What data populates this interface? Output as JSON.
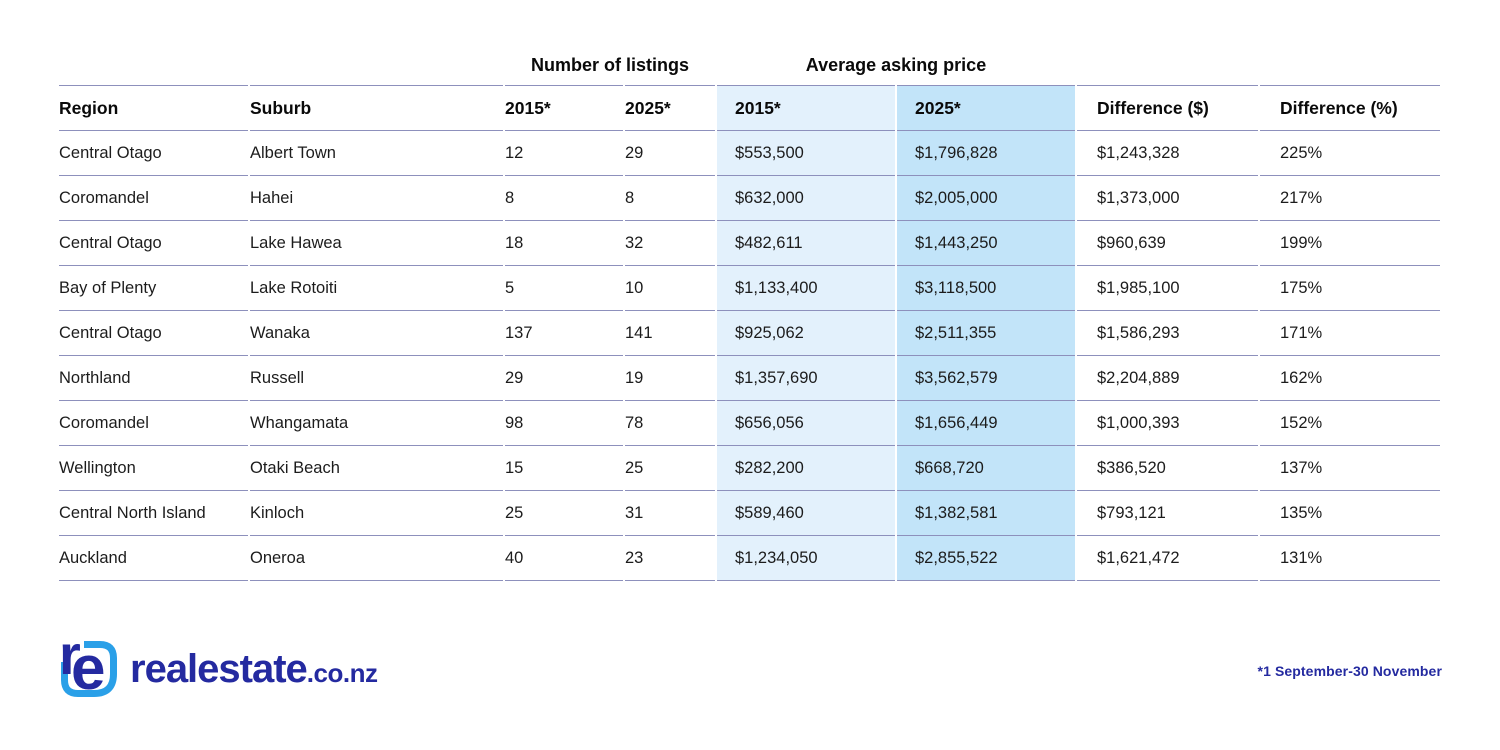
{
  "chart_data": {
    "type": "table",
    "group_headers": [
      {
        "label": "Number of listings",
        "spans": [
          "2015*",
          "2025*"
        ]
      },
      {
        "label": "Average asking price",
        "spans": [
          "2015*",
          "2025*"
        ]
      }
    ],
    "columns": [
      "Region",
      "Suburb",
      "2015*",
      "2025*",
      "2015*",
      "2025*",
      "Difference ($)",
      "Difference (%)"
    ],
    "rows": [
      [
        "Central Otago",
        "Albert Town",
        "12",
        "29",
        "$553,500",
        "$1,796,828",
        "$1,243,328",
        "225%"
      ],
      [
        "Coromandel",
        "Hahei",
        "8",
        "8",
        "$632,000",
        "$2,005,000",
        "$1,373,000",
        "217%"
      ],
      [
        "Central Otago",
        "Lake Hawea",
        "18",
        "32",
        "$482,611",
        "$1,443,250",
        "$960,639",
        "199%"
      ],
      [
        "Bay of Plenty",
        "Lake Rotoiti",
        "5",
        "10",
        "$1,133,400",
        "$3,118,500",
        "$1,985,100",
        "175%"
      ],
      [
        "Central Otago",
        "Wanaka",
        "137",
        "141",
        "$925,062",
        "$2,511,355",
        "$1,586,293",
        "171%"
      ],
      [
        "Northland",
        "Russell",
        "29",
        "19",
        "$1,357,690",
        "$3,562,579",
        "$2,204,889",
        "162%"
      ],
      [
        "Coromandel",
        "Whangamata",
        "98",
        "78",
        "$656,056",
        "$1,656,449",
        "$1,000,393",
        "152%"
      ],
      [
        "Wellington",
        "Otaki Beach",
        "15",
        "25",
        "$282,200",
        "$668,720",
        "$386,520",
        "137%"
      ],
      [
        "Central North Island",
        "Kinloch",
        "25",
        "31",
        "$589,460",
        "$1,382,581",
        "$793,121",
        "135%"
      ],
      [
        "Auckland",
        "Oneroa",
        "40",
        "23",
        "$1,234,050",
        "$2,855,522",
        "$1,621,472",
        "131%"
      ]
    ],
    "highlighted_columns": [
      "Average asking price 2015*",
      "Average asking price 2025*"
    ],
    "footnote": "*1 September-30 November"
  },
  "footer": {
    "logo_main": "realestate",
    "logo_suffix": ".co.nz",
    "logo_icon_letters": "re",
    "footnote": "*1 September-30 November"
  },
  "colors": {
    "navy": "#242aa0",
    "icon_blue": "#2aa0e8",
    "border": "#8d90bc",
    "hl_2015": "#e3f1fc",
    "hl_2025": "#c2e4f9",
    "body_text": "#1c1c1c"
  }
}
